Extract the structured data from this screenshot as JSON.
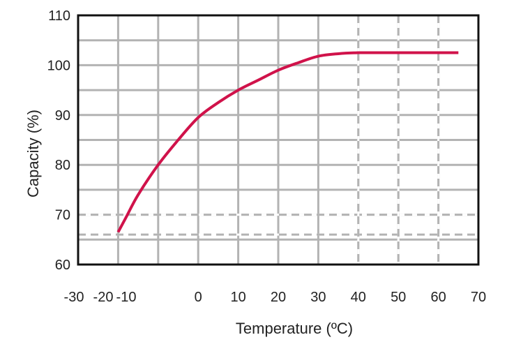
{
  "chart_data": {
    "type": "line",
    "title": "",
    "xlabel": "Temperature (ºC)",
    "ylabel": "Capacity (%)",
    "xlim": [
      -30,
      70
    ],
    "ylim": [
      60,
      110
    ],
    "x_tick_labels": [
      "-30",
      "-20",
      "-10",
      "0",
      "10",
      "20",
      "30",
      "40",
      "50",
      "60",
      "70"
    ],
    "y_tick_labels": [
      "60",
      "70",
      "80",
      "90",
      "100",
      "110"
    ],
    "grid": true,
    "legend": "none",
    "colors": {
      "line": "#d0124a",
      "grid": "#b3b3b3",
      "frame": "#111111"
    },
    "reference_lines": [
      {
        "axis": "y",
        "value": 70,
        "style": "dashed"
      },
      {
        "axis": "y",
        "value": 66,
        "style": "dashed"
      },
      {
        "axis": "x",
        "value": 40,
        "style": "dashed"
      },
      {
        "axis": "x",
        "value": 50,
        "style": "dashed"
      },
      {
        "axis": "x",
        "value": 60,
        "style": "dashed"
      }
    ],
    "series": [
      {
        "x": [
          -20,
          -18,
          -15,
          -10,
          -5,
          0,
          5,
          10,
          15,
          20,
          25,
          30,
          35,
          40,
          45,
          50,
          55,
          60,
          65
        ],
        "values": [
          66.5,
          69.5,
          74,
          80,
          85,
          89.5,
          92.5,
          95,
          97,
          99,
          100.5,
          101.8,
          102.3,
          102.5,
          102.5,
          102.5,
          102.5,
          102.5,
          102.5
        ]
      }
    ]
  }
}
